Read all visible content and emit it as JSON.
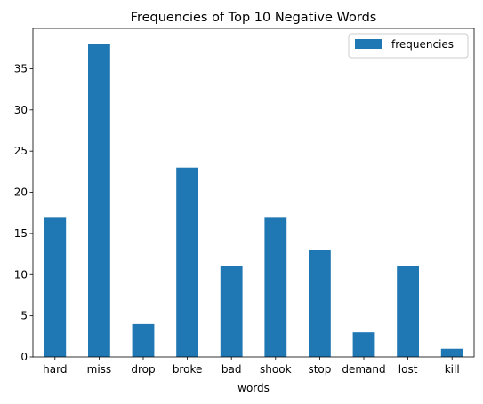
{
  "chart_data": {
    "type": "bar",
    "title": "Frequencies of Top 10 Negative Words",
    "xlabel": "words",
    "ylabel": "",
    "categories": [
      "hard",
      "miss",
      "drop",
      "broke",
      "bad",
      "shook",
      "stop",
      "demand",
      "lost",
      "kill"
    ],
    "series": [
      {
        "name": "frequencies",
        "values": [
          17,
          38,
          4,
          23,
          11,
          17,
          13,
          3,
          11,
          1
        ],
        "color": "#1f77b4"
      }
    ],
    "ylim": [
      0,
      39.9
    ],
    "yticks": [
      0,
      5,
      10,
      15,
      20,
      25,
      30,
      35
    ],
    "grid": false,
    "legend_position": "top-right"
  }
}
